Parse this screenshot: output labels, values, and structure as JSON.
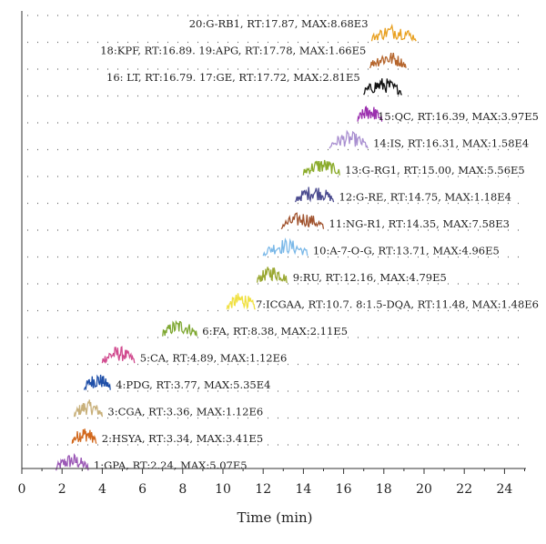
{
  "chart_data": {
    "type": "line",
    "title": "",
    "xlabel": "Time (min)",
    "ylabel": "",
    "xlim": [
      0,
      25
    ],
    "x_ticks": [
      "0",
      "2",
      "4",
      "6",
      "8",
      "10",
      "12",
      "14",
      "16",
      "18",
      "20",
      "22",
      "24"
    ],
    "grid": "dotted horizontal rows",
    "legend": "none",
    "series": [
      {
        "label": "1:GPA, RT:2.24, MAX:5.07E5",
        "rt": 2.24,
        "x_range": [
          1.7,
          3.3
        ],
        "color": "#9b59b6"
      },
      {
        "label": "2:HSYA, RT:3.34, MAX:3.41E5",
        "rt": 3.34,
        "x_range": [
          2.5,
          3.7
        ],
        "color": "#d2691e"
      },
      {
        "label": "3:CGA, RT:3.36, MAX:1.12E6",
        "rt": 3.36,
        "x_range": [
          2.6,
          4.0
        ],
        "color": "#c8b07a"
      },
      {
        "label": "4:PDG, RT:3.77, MAX:5.35E4",
        "rt": 3.77,
        "x_range": [
          3.1,
          4.4
        ],
        "color": "#1f4fa8"
      },
      {
        "label": "5:CA, RT:4.89, MAX:1.12E6",
        "rt": 4.89,
        "x_range": [
          4.0,
          5.6
        ],
        "color": "#d14b8f"
      },
      {
        "label": "6:FA, RT:8.38, MAX:2.11E5",
        "rt": 8.38,
        "x_range": [
          7.0,
          8.7
        ],
        "color": "#7fa832"
      },
      {
        "label": "7:ICGAA, RT:10.7. 8:1.5-DQA, RT:11.48, MAX:1.48E6",
        "rt": 10.7,
        "x_range": [
          10.2,
          11.6
        ],
        "color": "#f0e040"
      },
      {
        "label": "9:RU, RT:12.16, MAX:4.79E5",
        "rt": 12.16,
        "x_range": [
          11.7,
          13.2
        ],
        "color": "#9aa832"
      },
      {
        "label": "10:A-7-O-G, RT:13.71, MAX:4.96E5",
        "rt": 13.71,
        "x_range": [
          12.0,
          14.2
        ],
        "color": "#7ab8e8"
      },
      {
        "label": "11:NG-R1, RT:14.35, MAX:7.58E3",
        "rt": 14.35,
        "x_range": [
          12.9,
          15.0
        ],
        "color": "#a0522d"
      },
      {
        "label": "12:G-RE, RT:14.75, MAX:1.18E4",
        "rt": 14.75,
        "x_range": [
          13.6,
          15.5
        ],
        "color": "#4b4b8f"
      },
      {
        "label": "13:G-RG1, RT:15.00, MAX:5.56E5",
        "rt": 15.0,
        "x_range": [
          14.0,
          15.8
        ],
        "color": "#8aab2a"
      },
      {
        "label": "14:IS, RT:16.31, MAX:1.58E4",
        "rt": 16.31,
        "x_range": [
          15.3,
          17.2
        ],
        "color": "#a98fd0"
      },
      {
        "label": "15:QC, RT:16.39, MAX:3.97E5",
        "rt": 16.39,
        "x_range": [
          16.7,
          17.9
        ],
        "color": "#9b2fae"
      },
      {
        "label": "16: LT, RT:16.79. 17:GE, RT:17.72, MAX:2.81E5",
        "rt": 16.79,
        "x_range": [
          17.0,
          18.9
        ],
        "color": "#111111"
      },
      {
        "label": "18:KPF, RT:16.89. 19:APG, RT:17.78, MAX:1.66E5",
        "rt": 17.78,
        "x_range": [
          17.3,
          19.1
        ],
        "color": "#b5652c"
      },
      {
        "label": "20:G-RB1, RT:17.87, MAX:8.68E3",
        "rt": 17.87,
        "x_range": [
          17.4,
          19.6
        ],
        "color": "#e8a020"
      }
    ]
  }
}
